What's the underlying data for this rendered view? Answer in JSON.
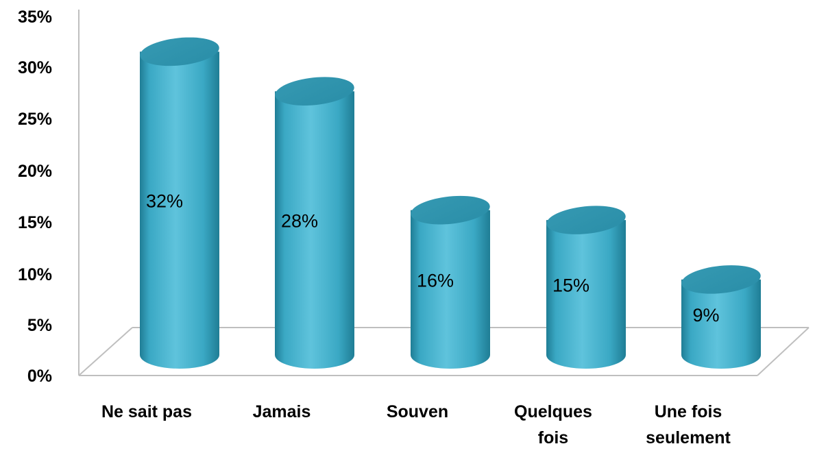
{
  "chart_data": {
    "type": "bar",
    "style": "3d-cylinder",
    "categories": [
      [
        "Ne sait pas"
      ],
      [
        "Jamais"
      ],
      [
        "Souven"
      ],
      [
        "Quelques",
        "fois"
      ],
      [
        "Une fois",
        "seulement"
      ]
    ],
    "values": [
      32,
      28,
      16,
      15,
      9
    ],
    "data_labels": [
      "32%",
      "28%",
      "16%",
      "15%",
      "9%"
    ],
    "y_ticks": [
      "0%",
      "5%",
      "10%",
      "15%",
      "20%",
      "25%",
      "30%",
      "35%"
    ],
    "ylim": [
      0,
      35
    ],
    "grid": false,
    "legend": "none",
    "colors": {
      "bar_light": "#5fc3dc",
      "bar_mid": "#3aa8c4",
      "bar_dark": "#1f7d95",
      "bar_top": "#2a8ea8",
      "axis": "#bfbfbf"
    }
  }
}
